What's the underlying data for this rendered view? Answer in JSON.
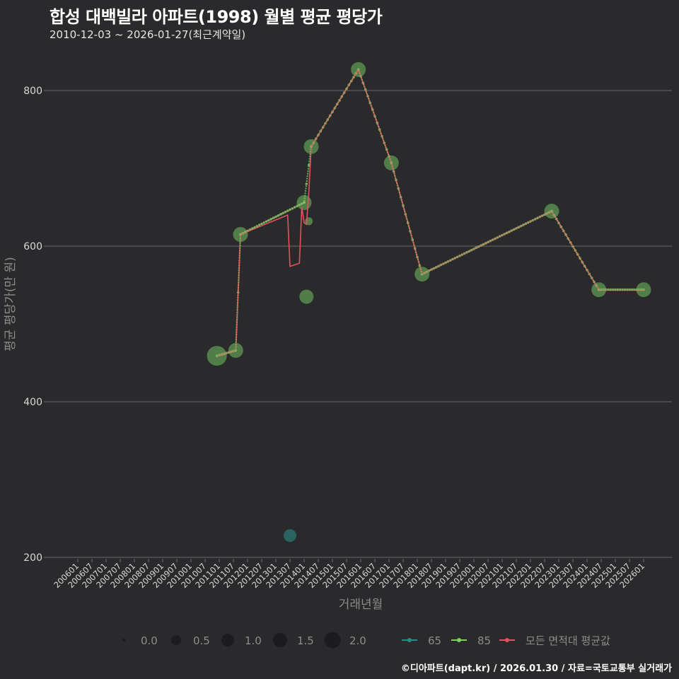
{
  "header": {
    "title": "합성 대백빌라 아파트(1998) 월별 평균 평당가",
    "subtitle": "2010-12-03 ~ 2026-01-27(최근계약일)"
  },
  "caption": "©디아파트(dapt.kr) / 2026.01.30 / 자료=국토교통부 실거래가",
  "colors": {
    "background": "#2a2a2c",
    "grid": "#6b6b6b",
    "series_65": "#2a8c86",
    "series_85": "#7fcf62",
    "series_all": "#e0525e",
    "point_85": "#5e9a52"
  },
  "chart_data": {
    "type": "line",
    "title": "합성 대백빌라 아파트(1998) 월별 평균 평당가",
    "subtitle": "2010-12-03 ~ 2026-01-27(최근계약일)",
    "xlabel": "거래년월",
    "ylabel": "평균 평당가(만 원)",
    "ylim": [
      200,
      840
    ],
    "yticks": [
      200,
      400,
      600,
      800
    ],
    "xticks": [
      "200601",
      "200607",
      "200701",
      "200707",
      "200801",
      "200807",
      "200901",
      "200907",
      "201001",
      "201007",
      "201101",
      "201107",
      "201201",
      "201207",
      "201301",
      "201307",
      "201401",
      "201407",
      "201501",
      "201507",
      "201601",
      "201607",
      "201701",
      "201707",
      "201801",
      "201807",
      "201901",
      "201907",
      "202001",
      "202007",
      "202101",
      "202107",
      "202201",
      "202207",
      "202301",
      "202307",
      "202401",
      "202407",
      "202501",
      "202507",
      "202601"
    ],
    "grid": "horizontal major lines",
    "legend": {
      "size_title": "",
      "size_entries": [
        "0.0",
        "0.5",
        "1.0",
        "1.5",
        "2.0"
      ],
      "series_entries": [
        "65",
        "85",
        "모든 면적대 평균값"
      ],
      "position": "bottom"
    },
    "series": [
      {
        "name": "65",
        "points": [
          {
            "x": "2013-07",
            "y": 228,
            "size": 1.0
          }
        ]
      },
      {
        "name": "85",
        "points": [
          {
            "x": "2010-12",
            "y": 459,
            "size": 2.0
          },
          {
            "x": "2011-08",
            "y": 466,
            "size": 1.3
          },
          {
            "x": "2011-10",
            "y": 615,
            "size": 1.3
          },
          {
            "x": "2014-01",
            "y": 656,
            "size": 1.3
          },
          {
            "x": "2014-02",
            "y": 535,
            "size": 1.2
          },
          {
            "x": "2014-03",
            "y": 632,
            "size": 0.3
          },
          {
            "x": "2014-04",
            "y": 728,
            "size": 1.3
          },
          {
            "x": "2015-12",
            "y": 827,
            "size": 1.3
          },
          {
            "x": "2017-02",
            "y": 707,
            "size": 1.3
          },
          {
            "x": "2018-03",
            "y": 564,
            "size": 1.3
          },
          {
            "x": "2022-10",
            "y": 645,
            "size": 1.3
          },
          {
            "x": "2024-06",
            "y": 544,
            "size": 1.3
          },
          {
            "x": "2026-01",
            "y": 544,
            "size": 1.3
          }
        ]
      },
      {
        "name": "모든 면적대 평균값",
        "points": [
          {
            "x": "2010-12",
            "y": 459
          },
          {
            "x": "2011-08",
            "y": 466
          },
          {
            "x": "2011-09",
            "y": 540
          },
          {
            "x": "2011-10",
            "y": 615
          },
          {
            "x": "2013-06",
            "y": 640
          },
          {
            "x": "2013-07",
            "y": 574
          },
          {
            "x": "2013-11",
            "y": 578
          },
          {
            "x": "2013-12",
            "y": 650
          },
          {
            "x": "2014-01",
            "y": 630
          },
          {
            "x": "2014-02",
            "y": 628
          },
          {
            "x": "2014-03",
            "y": 670
          },
          {
            "x": "2014-04",
            "y": 728
          },
          {
            "x": "2015-12",
            "y": 827
          },
          {
            "x": "2017-02",
            "y": 707
          },
          {
            "x": "2018-03",
            "y": 564
          },
          {
            "x": "2022-10",
            "y": 645
          },
          {
            "x": "2024-06",
            "y": 544
          },
          {
            "x": "2026-01",
            "y": 544
          }
        ]
      }
    ]
  }
}
